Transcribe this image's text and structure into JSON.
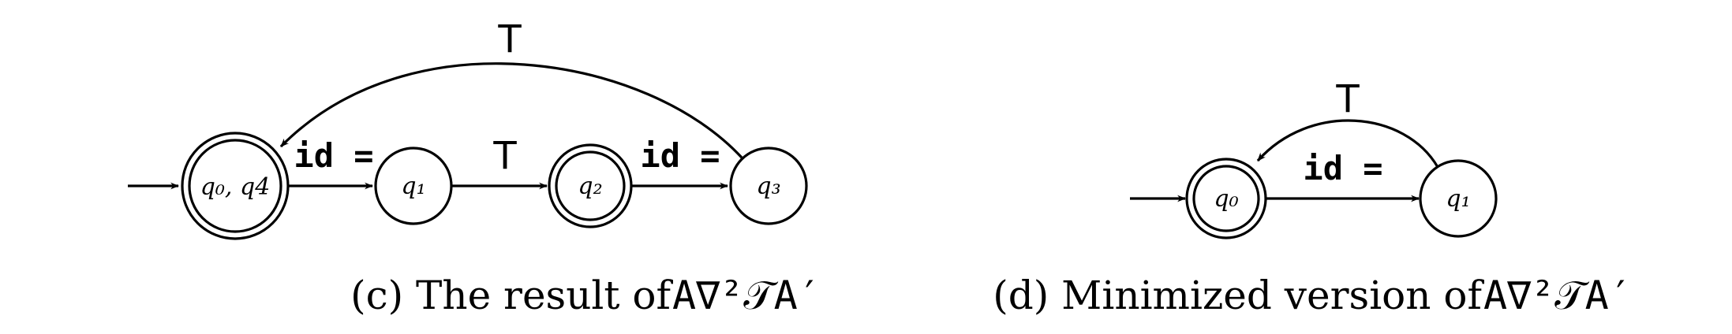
{
  "diagrams": [
    {
      "id": "c",
      "states": [
        {
          "key": "q04",
          "label": "q₀, q4",
          "accepting": true,
          "initial": true
        },
        {
          "key": "q1",
          "label": "q₁",
          "accepting": false,
          "initial": false
        },
        {
          "key": "q2",
          "label": "q₂",
          "accepting": true,
          "initial": false
        },
        {
          "key": "q3",
          "label": "q₃",
          "accepting": false,
          "initial": false
        }
      ],
      "transitions": [
        {
          "from": "q04",
          "to": "q1",
          "label": "id ="
        },
        {
          "from": "q1",
          "to": "q2",
          "label": "T"
        },
        {
          "from": "q2",
          "to": "q3",
          "label": "id ="
        },
        {
          "from": "q3",
          "to": "q04",
          "label": "T"
        }
      ],
      "caption_prefix": "(c) The result of ",
      "caption_formula": "A∇²𝒯A′"
    },
    {
      "id": "d",
      "states": [
        {
          "key": "q0",
          "label": "q₀",
          "accepting": true,
          "initial": true
        },
        {
          "key": "q1",
          "label": "q₁",
          "accepting": false,
          "initial": false
        }
      ],
      "transitions": [
        {
          "from": "q0",
          "to": "q1",
          "label": "id ="
        },
        {
          "from": "q1",
          "to": "q0",
          "label": "T"
        }
      ],
      "caption_prefix": "(d) Minimized version of ",
      "caption_formula": "A∇²𝒯A′"
    }
  ]
}
